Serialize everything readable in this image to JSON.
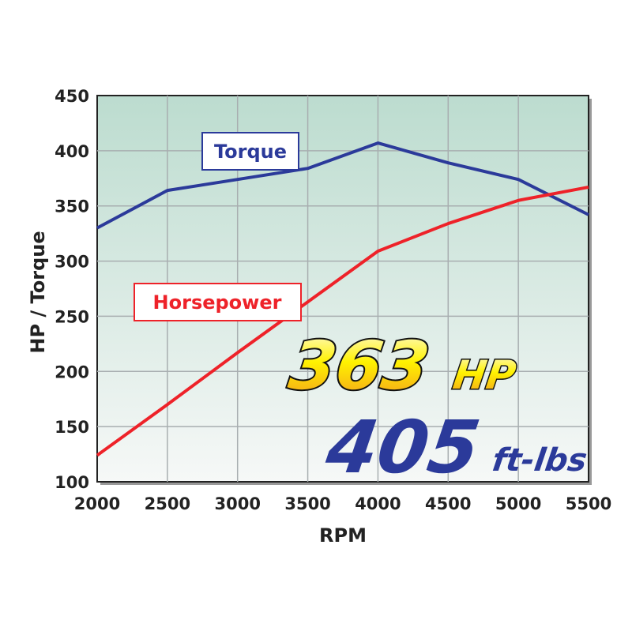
{
  "chart_data": {
    "type": "line",
    "xlabel": "RPM",
    "ylabel": "HP / Torque",
    "x": [
      2000,
      2500,
      3000,
      3500,
      4000,
      4500,
      5000,
      5500
    ],
    "xlim": [
      2000,
      5500
    ],
    "ylim": [
      100,
      450
    ],
    "xticks": [
      "2000",
      "2500",
      "3000",
      "3500",
      "4000",
      "4500",
      "5000",
      "5500"
    ],
    "yticks": [
      "100",
      "150",
      "200",
      "250",
      "300",
      "350",
      "400",
      "450"
    ],
    "grid": true,
    "series": [
      {
        "name": "Torque",
        "color": "#2b3a9a",
        "values": [
          330,
          364,
          374,
          384,
          407,
          389,
          374,
          342
        ]
      },
      {
        "name": "Horsepower",
        "color": "#ee2229",
        "values": [
          124,
          170,
          217,
          263,
          309,
          334,
          355,
          367
        ]
      }
    ],
    "annotations": {
      "hp_value": "363",
      "hp_unit": "HP",
      "torque_value": "405",
      "torque_unit": "ft-lbs"
    },
    "background_gradient": [
      "#bcdccf",
      "#f6f8f7"
    ]
  }
}
